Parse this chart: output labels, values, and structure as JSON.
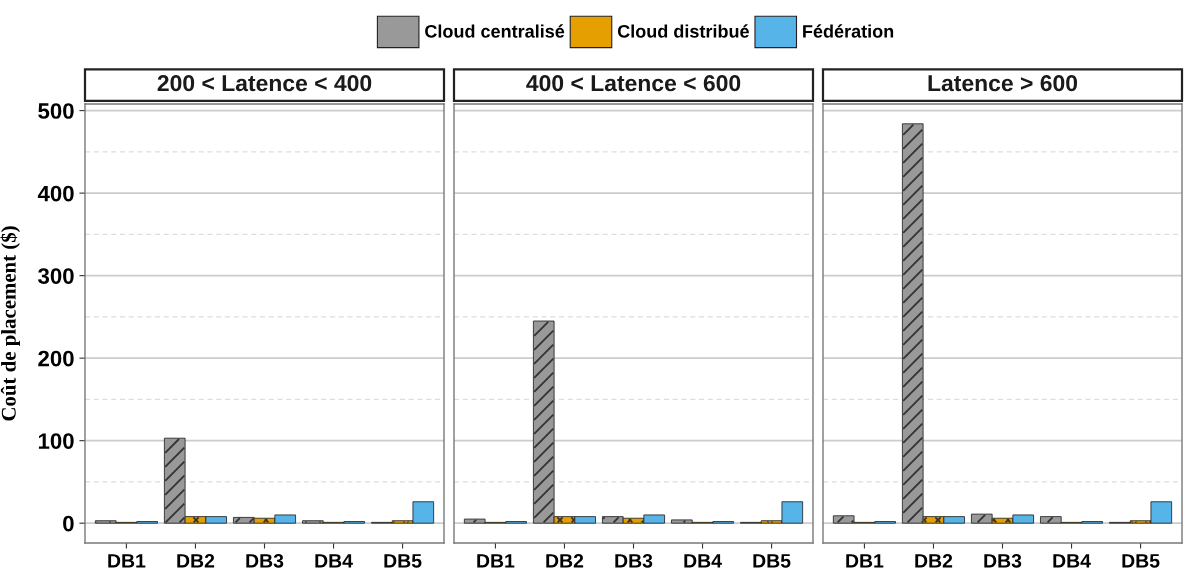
{
  "chart_data": [
    {
      "type": "bar",
      "title": "200 < Latence < 400",
      "ylabel": "Coût de placement ($)",
      "categories": [
        "DB1",
        "DB2",
        "DB3",
        "DB4",
        "DB5"
      ],
      "series": [
        {
          "name": "Cloud centralisé",
          "color": "#999999",
          "values": [
            3,
            103,
            7,
            3,
            1
          ]
        },
        {
          "name": "Cloud distribué",
          "color": "#e69f00",
          "values": [
            1,
            8,
            6,
            1,
            3
          ]
        },
        {
          "name": "Fédération",
          "color": "#56b4e9",
          "values": [
            2,
            8,
            10,
            2,
            26
          ]
        }
      ],
      "ylim": [
        -24,
        508
      ],
      "yticks": [
        0,
        {
          "value": 50,
          "label": null
        },
        100,
        {
          "value": 150,
          "label": null
        },
        200,
        {
          "value": 250,
          "label": null
        },
        300,
        {
          "value": 350,
          "label": null
        },
        400,
        {
          "value": 450,
          "label": null
        },
        500
      ],
      "grid": "y",
      "legend": "top"
    },
    {
      "type": "bar",
      "title": "400 < Latence < 600",
      "categories": [
        "DB1",
        "DB2",
        "DB3",
        "DB4",
        "DB5"
      ],
      "series": [
        {
          "color": "#999999",
          "values": [
            5,
            245,
            8,
            4,
            1
          ]
        },
        {
          "color": "#e69f00",
          "values": [
            1,
            8,
            6,
            1,
            3
          ]
        },
        {
          "color": "#56b4e9",
          "values": [
            2,
            8,
            10,
            2,
            26
          ]
        }
      ],
      "ylim": [
        -24,
        508
      ],
      "yticks": [
        0,
        {
          "value": 50,
          "label": null
        },
        100,
        {
          "value": 150,
          "label": null
        },
        200,
        {
          "value": 250,
          "label": null
        },
        300,
        {
          "value": 350,
          "label": null
        },
        400,
        {
          "value": 450,
          "label": null
        },
        500
      ],
      "grid": "y",
      "tick_labels": "x"
    },
    {
      "type": "bar",
      "title": "Latence > 600",
      "categories": [
        "DB1",
        "DB2",
        "DB3",
        "DB4",
        "DB5"
      ],
      "series": [
        {
          "color": "#999999",
          "values": [
            9,
            484,
            11,
            8,
            1
          ]
        },
        {
          "color": "#e69f00",
          "values": [
            1,
            8,
            6,
            1,
            3
          ]
        },
        {
          "color": "#56b4e9",
          "values": [
            2,
            8,
            10,
            2,
            26
          ]
        }
      ],
      "ylim": [
        -24,
        508
      ],
      "yticks": [
        0,
        {
          "value": 50,
          "label": null
        },
        100,
        {
          "value": 150,
          "label": null
        },
        200,
        {
          "value": 250,
          "label": null
        },
        300,
        {
          "value": 350,
          "label": null
        },
        400,
        {
          "value": 450,
          "label": null
        },
        500
      ],
      "grid": "y",
      "tick_labels": "x"
    }
  ]
}
